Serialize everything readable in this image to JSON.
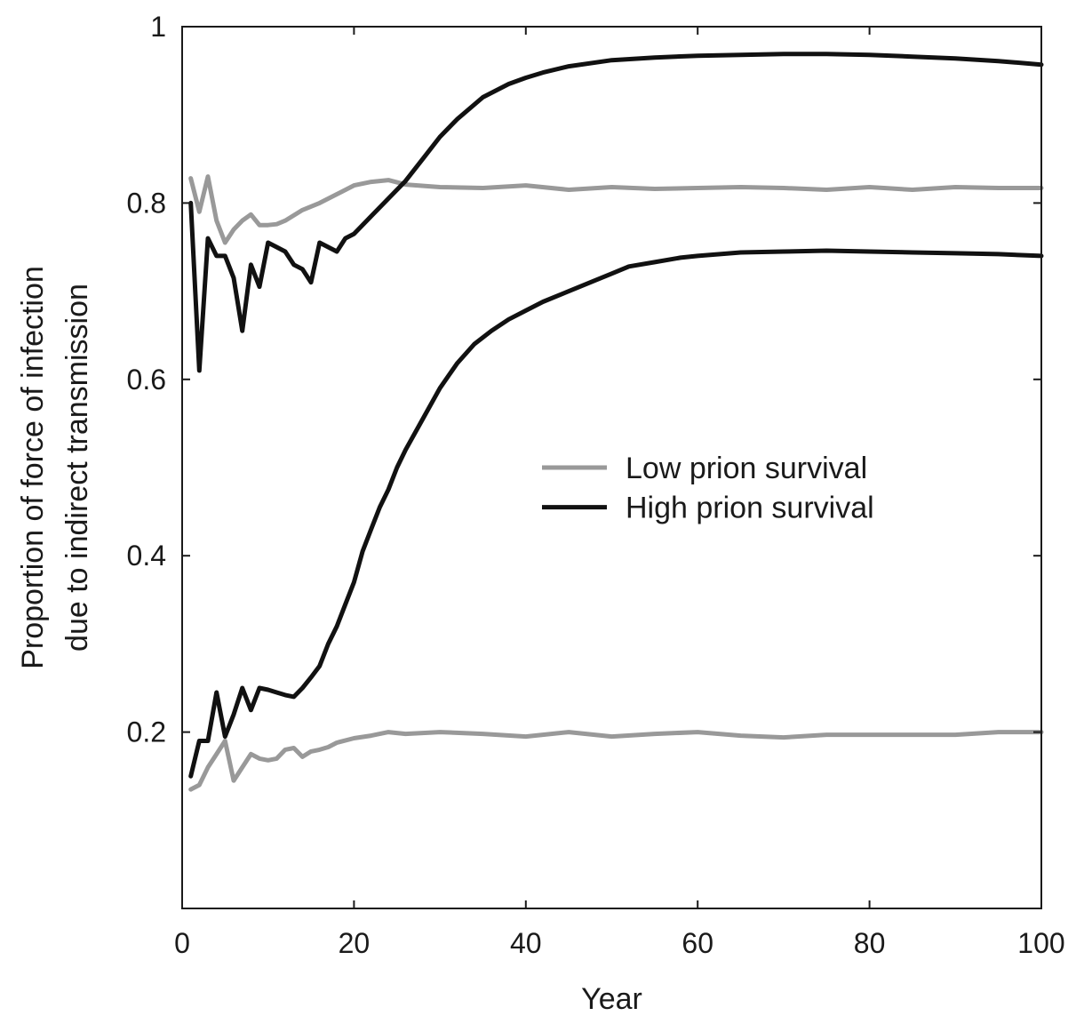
{
  "chart_data": {
    "type": "line",
    "xlabel": "Year",
    "ylabel": [
      "Proportion of force of infection",
      "due to indirect transmission"
    ],
    "xlim": [
      0,
      100
    ],
    "ylim": [
      0,
      1
    ],
    "x_ticks": [
      0,
      20,
      40,
      60,
      80,
      100
    ],
    "x_tick_labels": [
      "0",
      "20",
      "40",
      "60",
      "80",
      "100"
    ],
    "y_ticks": [
      0.2,
      0.4,
      0.6,
      0.8,
      1
    ],
    "y_tick_labels": [
      "0.2",
      "0.4",
      "0.6",
      "0.8",
      "1"
    ],
    "grid": false,
    "legend_position": "center-right",
    "legend": [
      {
        "label": "Low prion survival",
        "color": "#999999"
      },
      {
        "label": "High prion survival",
        "color": "#111111"
      }
    ],
    "series": [
      {
        "name": "Low prion survival",
        "color": "#999999",
        "x": [
          1,
          2,
          3,
          4,
          5,
          6,
          7,
          8,
          9,
          10,
          11,
          12,
          14,
          16,
          18,
          20,
          22,
          24,
          26,
          30,
          35,
          40,
          45,
          50,
          55,
          60,
          65,
          70,
          75,
          80,
          85,
          90,
          95,
          100
        ],
        "y": [
          0.828,
          0.79,
          0.83,
          0.78,
          0.755,
          0.77,
          0.78,
          0.787,
          0.775,
          0.775,
          0.776,
          0.78,
          0.792,
          0.8,
          0.81,
          0.82,
          0.824,
          0.826,
          0.821,
          0.818,
          0.817,
          0.82,
          0.815,
          0.818,
          0.816,
          0.817,
          0.818,
          0.817,
          0.815,
          0.818,
          0.815,
          0.818,
          0.817,
          0.817
        ]
      },
      {
        "name": "Low prion survival",
        "color": "#999999",
        "x": [
          1,
          2,
          3,
          4,
          5,
          6,
          7,
          8,
          9,
          10,
          11,
          12,
          13,
          14,
          15,
          16,
          17,
          18,
          20,
          22,
          24,
          26,
          30,
          35,
          40,
          45,
          50,
          55,
          60,
          65,
          70,
          75,
          80,
          85,
          90,
          95,
          100
        ],
        "y": [
          0.135,
          0.14,
          0.16,
          0.175,
          0.19,
          0.145,
          0.16,
          0.175,
          0.17,
          0.168,
          0.17,
          0.18,
          0.182,
          0.172,
          0.178,
          0.18,
          0.183,
          0.188,
          0.193,
          0.196,
          0.2,
          0.198,
          0.2,
          0.198,
          0.195,
          0.2,
          0.195,
          0.198,
          0.2,
          0.196,
          0.194,
          0.197,
          0.197,
          0.197,
          0.197,
          0.2,
          0.2
        ]
      },
      {
        "name": "High prion survival",
        "color": "#111111",
        "x": [
          1,
          2,
          3,
          4,
          5,
          6,
          7,
          8,
          9,
          10,
          11,
          12,
          13,
          14,
          15,
          16,
          17,
          18,
          19,
          20,
          22,
          24,
          26,
          28,
          30,
          32,
          35,
          38,
          40,
          42,
          45,
          50,
          55,
          60,
          65,
          70,
          75,
          80,
          85,
          90,
          95,
          100
        ],
        "y": [
          0.8,
          0.61,
          0.76,
          0.74,
          0.74,
          0.715,
          0.655,
          0.73,
          0.705,
          0.755,
          0.75,
          0.745,
          0.73,
          0.725,
          0.71,
          0.755,
          0.75,
          0.745,
          0.76,
          0.765,
          0.785,
          0.805,
          0.825,
          0.85,
          0.875,
          0.895,
          0.92,
          0.935,
          0.942,
          0.948,
          0.955,
          0.962,
          0.965,
          0.967,
          0.968,
          0.969,
          0.969,
          0.968,
          0.966,
          0.964,
          0.961,
          0.957
        ]
      },
      {
        "name": "High prion survival",
        "color": "#111111",
        "x": [
          1,
          2,
          3,
          4,
          5,
          6,
          7,
          8,
          9,
          10,
          11,
          12,
          13,
          14,
          15,
          16,
          17,
          18,
          19,
          20,
          21,
          22,
          23,
          24,
          25,
          26,
          28,
          30,
          32,
          34,
          36,
          38,
          40,
          42,
          45,
          48,
          50,
          52,
          55,
          58,
          60,
          65,
          70,
          75,
          80,
          85,
          90,
          95,
          100
        ],
        "y": [
          0.15,
          0.19,
          0.19,
          0.245,
          0.195,
          0.22,
          0.25,
          0.225,
          0.25,
          0.248,
          0.245,
          0.242,
          0.24,
          0.25,
          0.262,
          0.275,
          0.3,
          0.32,
          0.345,
          0.37,
          0.405,
          0.43,
          0.455,
          0.475,
          0.5,
          0.52,
          0.555,
          0.59,
          0.618,
          0.64,
          0.655,
          0.668,
          0.678,
          0.688,
          0.7,
          0.712,
          0.72,
          0.728,
          0.733,
          0.738,
          0.74,
          0.744,
          0.745,
          0.746,
          0.745,
          0.744,
          0.743,
          0.742,
          0.74
        ]
      }
    ]
  }
}
